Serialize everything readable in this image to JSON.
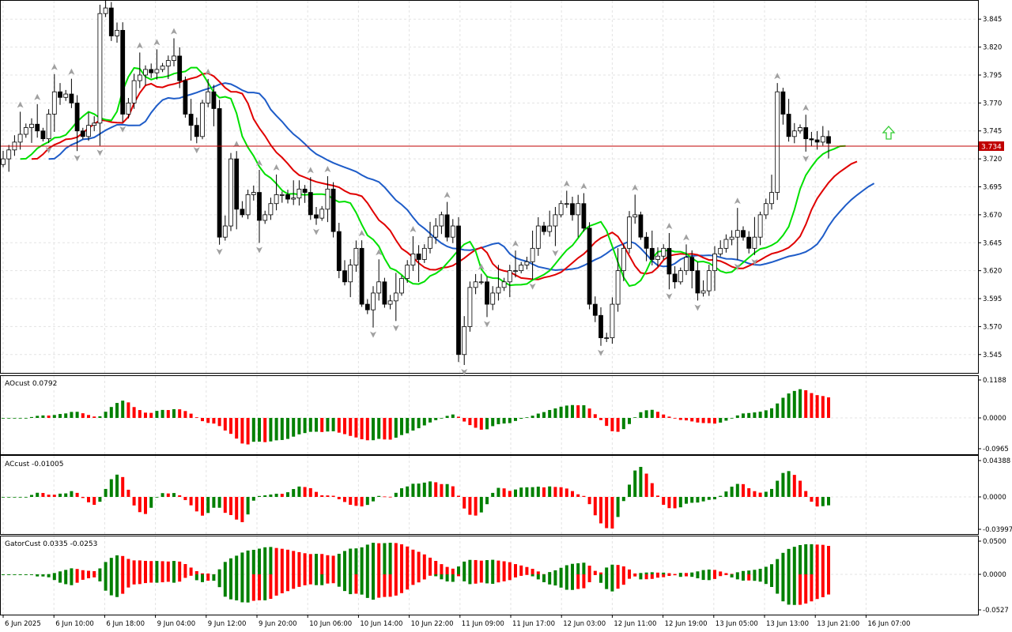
{
  "colors": {
    "bull": "#008000",
    "bear": "#ff0000",
    "ao_up": "#008000",
    "ao_down": "#ff0000",
    "jaw": "#1e5cc8",
    "teeth": "#e00000",
    "lips": "#00e000",
    "price_line": "#c00000",
    "price_badge": "#c00000",
    "grid": "#e3e3e3",
    "axis_text": "#000000",
    "fractal": "#a0a0a0",
    "signal_arrow": "#33cc33"
  },
  "main": {
    "price_ticks": [
      "3.845",
      "3.820",
      "3.795",
      "3.770",
      "3.745",
      "3.720",
      "3.695",
      "3.670",
      "3.645",
      "3.620",
      "3.595",
      "3.570",
      "3.545"
    ],
    "current_price": "3.734",
    "arrow_icon": "up-arrow-icon"
  },
  "ao_panel": {
    "label": "AOcust 0.0792",
    "ticks": [
      "0.1188",
      "0.0000",
      "-0.0965"
    ]
  },
  "ac_panel": {
    "label": "ACcust -0.01005",
    "ticks": [
      "0.04388",
      "0.0000",
      "-0.03997"
    ]
  },
  "gator_panel": {
    "label": "GatorCust 0.0335 -0.0253",
    "ticks": [
      "0.0500",
      "0.0000",
      "-0.0527"
    ]
  },
  "time_axis": {
    "labels": [
      "6 Jun 2025",
      "6 Jun 10:00",
      "6 Jun 18:00",
      "9 Jun 04:00",
      "9 Jun 12:00",
      "9 Jun 20:00",
      "10 Jun 06:00",
      "10 Jun 14:00",
      "10 Jun 22:00",
      "11 Jun 09:00",
      "11 Jun 17:00",
      "12 Jun 03:00",
      "12 Jun 11:00",
      "12 Jun 19:00",
      "13 Jun 05:00",
      "13 Jun 13:00",
      "13 Jun 21:00",
      "16 Jun 07:00"
    ]
  },
  "chart_data": {
    "type": "candlestick",
    "closes": [
      3.72,
      3.728,
      3.735,
      3.742,
      3.748,
      3.751,
      3.745,
      3.738,
      3.76,
      3.78,
      3.775,
      3.778,
      3.77,
      3.745,
      3.74,
      3.75,
      3.752,
      3.85,
      3.855,
      3.83,
      3.835,
      3.76,
      3.77,
      3.79,
      3.795,
      3.8,
      3.797,
      3.8,
      3.803,
      3.808,
      3.812,
      3.79,
      3.76,
      3.75,
      3.74,
      3.77,
      3.78,
      3.765,
      3.65,
      3.66,
      3.72,
      3.675,
      3.67,
      3.688,
      3.69,
      3.665,
      3.67,
      3.68,
      3.688,
      3.688,
      3.684,
      3.685,
      3.693,
      3.69,
      3.67,
      3.667,
      3.675,
      3.693,
      3.655,
      3.62,
      3.61,
      3.625,
      3.64,
      3.59,
      3.585,
      3.6,
      3.61,
      3.59,
      3.593,
      3.6,
      3.613,
      3.625,
      3.635,
      3.63,
      3.64,
      3.65,
      3.66,
      3.67,
      3.65,
      3.66,
      3.545,
      3.57,
      3.605,
      3.61,
      3.61,
      3.59,
      3.6,
      3.605,
      3.61,
      3.62,
      3.62,
      3.625,
      3.628,
      3.64,
      3.66,
      3.655,
      3.66,
      3.67,
      3.68,
      3.68,
      3.67,
      3.68,
      3.658,
      3.59,
      3.58,
      3.56,
      3.56,
      3.59,
      3.62,
      3.64,
      3.668,
      3.67,
      3.65,
      3.64,
      3.63,
      3.633,
      3.64,
      3.617,
      3.61,
      3.62,
      3.632,
      3.62,
      3.6,
      3.602,
      3.62,
      3.635,
      3.64,
      3.648,
      3.65,
      3.656,
      3.65,
      3.64,
      3.65,
      3.67,
      3.68,
      3.69,
      3.78,
      3.76,
      3.74,
      3.745,
      3.748,
      3.738,
      3.737,
      3.735,
      3.74,
      3.734
    ],
    "ylim": [
      3.53,
      3.86
    ],
    "price_label": "3.734"
  }
}
